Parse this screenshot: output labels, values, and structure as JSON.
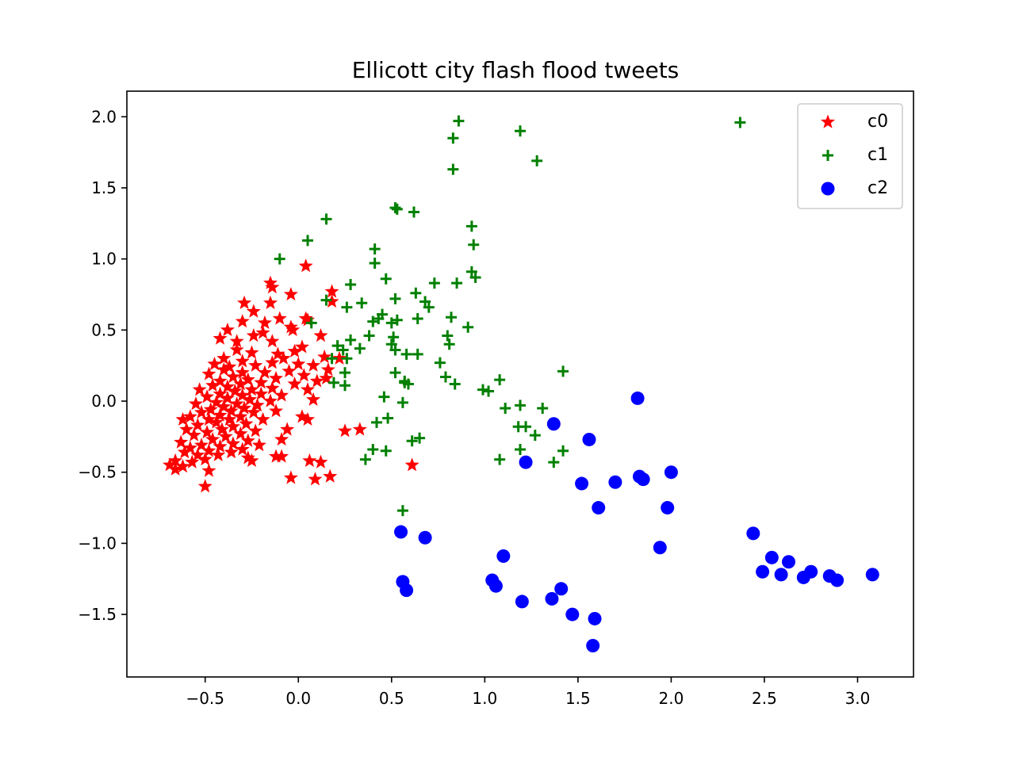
{
  "chart_data": {
    "type": "scatter",
    "title": "Ellicott city flash flood tweets",
    "xlabel": "",
    "ylabel": "",
    "xlim": [
      -0.92,
      3.3
    ],
    "ylim": [
      -1.94,
      2.18
    ],
    "xticks": [
      -0.5,
      0.0,
      0.5,
      1.0,
      1.5,
      2.0,
      2.5,
      3.0
    ],
    "xtick_labels": [
      "−0.5",
      "0.0",
      "0.5",
      "1.0",
      "1.5",
      "2.0",
      "2.5",
      "3.0"
    ],
    "yticks": [
      -1.5,
      -1.0,
      -0.5,
      0.0,
      0.5,
      1.0,
      1.5,
      2.0
    ],
    "ytick_labels": [
      "−1.5",
      "−1.0",
      "−0.5",
      "0.0",
      "0.5",
      "1.0",
      "1.5",
      "2.0"
    ],
    "grid": false,
    "legend_position": "top-right",
    "series": [
      {
        "name": "c0",
        "marker": "star",
        "color": "#ff0000",
        "points": [
          [
            0.04,
            0.95
          ],
          [
            -0.15,
            0.83
          ],
          [
            -0.14,
            0.8
          ],
          [
            0.18,
            0.77
          ],
          [
            -0.04,
            0.75
          ],
          [
            0.18,
            0.7
          ],
          [
            -0.15,
            0.69
          ],
          [
            -0.29,
            0.69
          ],
          [
            -0.24,
            0.63
          ],
          [
            -0.1,
            0.58
          ],
          [
            0.04,
            0.58
          ],
          [
            0.05,
            0.57
          ],
          [
            -0.3,
            0.56
          ],
          [
            -0.04,
            0.52
          ],
          [
            -0.38,
            0.5
          ],
          [
            -0.03,
            0.5
          ],
          [
            -0.19,
            0.48
          ],
          [
            -0.24,
            0.46
          ],
          [
            0.12,
            0.46
          ],
          [
            -0.42,
            0.44
          ],
          [
            -0.33,
            0.42
          ],
          [
            -0.14,
            0.42
          ],
          [
            0.02,
            0.38
          ],
          [
            -0.33,
            0.36
          ],
          [
            -0.25,
            0.34
          ],
          [
            -0.11,
            0.33
          ],
          [
            0.14,
            0.31
          ],
          [
            -0.4,
            0.3
          ],
          [
            0.22,
            0.3
          ],
          [
            -0.08,
            0.3
          ],
          [
            -0.3,
            0.28
          ],
          [
            -0.14,
            0.27
          ],
          [
            0.0,
            0.26
          ],
          [
            -0.45,
            0.26
          ],
          [
            -0.23,
            0.25
          ],
          [
            0.08,
            0.25
          ],
          [
            -0.37,
            0.24
          ],
          [
            -0.4,
            0.22
          ],
          [
            0.16,
            0.22
          ],
          [
            -0.05,
            0.21
          ],
          [
            -0.3,
            0.2
          ],
          [
            -0.18,
            0.2
          ],
          [
            -0.48,
            0.19
          ],
          [
            0.03,
            0.18
          ],
          [
            -0.35,
            0.17
          ],
          [
            -0.12,
            0.16
          ],
          [
            -0.27,
            0.15
          ],
          [
            -0.42,
            0.14
          ],
          [
            0.1,
            0.14
          ],
          [
            -0.2,
            0.13
          ],
          [
            -0.31,
            0.12
          ],
          [
            -0.02,
            0.12
          ],
          [
            -0.46,
            0.11
          ],
          [
            -0.38,
            0.1
          ],
          [
            -0.14,
            0.09
          ],
          [
            -0.25,
            0.08
          ],
          [
            0.05,
            0.08
          ],
          [
            -0.53,
            0.08
          ],
          [
            -0.34,
            0.07
          ],
          [
            -0.42,
            0.05
          ],
          [
            -0.2,
            0.05
          ],
          [
            -0.3,
            0.04
          ],
          [
            -0.09,
            0.04
          ],
          [
            -0.49,
            0.03
          ],
          [
            -0.38,
            0.02
          ],
          [
            -0.26,
            0.01
          ],
          [
            -0.15,
            0.0
          ],
          [
            -0.44,
            -0.01
          ],
          [
            -0.33,
            -0.02
          ],
          [
            -0.55,
            -0.02
          ],
          [
            -0.22,
            -0.03
          ],
          [
            -0.4,
            -0.04
          ],
          [
            -0.29,
            -0.05
          ],
          [
            -0.47,
            -0.06
          ],
          [
            -0.36,
            -0.07
          ],
          [
            -0.12,
            -0.07
          ],
          [
            -0.52,
            -0.08
          ],
          [
            -0.24,
            -0.08
          ],
          [
            -0.42,
            -0.1
          ],
          [
            -0.31,
            -0.11
          ],
          [
            -0.58,
            -0.11
          ],
          [
            -0.48,
            -0.13
          ],
          [
            -0.37,
            -0.13
          ],
          [
            -0.19,
            -0.13
          ],
          [
            -0.62,
            -0.13
          ],
          [
            -0.44,
            -0.15
          ],
          [
            -0.28,
            -0.16
          ],
          [
            -0.54,
            -0.17
          ],
          [
            -0.35,
            -0.18
          ],
          [
            -0.41,
            -0.2
          ],
          [
            -0.6,
            -0.2
          ],
          [
            -0.23,
            -0.21
          ],
          [
            -0.49,
            -0.22
          ],
          [
            -0.31,
            -0.23
          ],
          [
            -0.56,
            -0.24
          ],
          [
            -0.39,
            -0.25
          ],
          [
            -0.09,
            -0.27
          ],
          [
            -0.46,
            -0.27
          ],
          [
            -0.27,
            -0.28
          ],
          [
            -0.63,
            -0.29
          ],
          [
            -0.35,
            -0.3
          ],
          [
            -0.52,
            -0.31
          ],
          [
            -0.21,
            -0.31
          ],
          [
            -0.42,
            -0.32
          ],
          [
            -0.58,
            -0.33
          ],
          [
            -0.3,
            -0.34
          ],
          [
            -0.48,
            -0.35
          ],
          [
            -0.36,
            -0.36
          ],
          [
            -0.61,
            -0.36
          ],
          [
            -0.54,
            -0.38
          ],
          [
            -0.43,
            -0.38
          ],
          [
            -0.27,
            -0.4
          ],
          [
            -0.5,
            -0.41
          ],
          [
            -0.66,
            -0.42
          ],
          [
            -0.57,
            -0.43
          ],
          [
            -0.69,
            -0.45
          ],
          [
            -0.62,
            -0.46
          ],
          [
            -0.48,
            -0.49
          ],
          [
            -0.66,
            -0.48
          ],
          [
            -0.5,
            -0.6
          ],
          [
            -0.25,
            -0.42
          ],
          [
            -0.12,
            -0.39
          ],
          [
            -0.09,
            -0.39
          ],
          [
            0.06,
            -0.42
          ],
          [
            0.12,
            -0.43
          ],
          [
            -0.04,
            -0.54
          ],
          [
            0.09,
            -0.55
          ],
          [
            0.17,
            -0.53
          ],
          [
            0.61,
            -0.45
          ],
          [
            0.25,
            -0.21
          ],
          [
            0.33,
            -0.2
          ],
          [
            0.05,
            -0.13
          ],
          [
            0.02,
            -0.11
          ],
          [
            -0.06,
            -0.2
          ],
          [
            0.15,
            0.16
          ],
          [
            0.08,
            0.01
          ],
          [
            -0.02,
            0.35
          ],
          [
            -0.18,
            0.55
          ]
        ]
      },
      {
        "name": "c1",
        "marker": "plus",
        "color": "#008000",
        "points": [
          [
            0.86,
            1.97
          ],
          [
            0.83,
            1.85
          ],
          [
            1.19,
            1.9
          ],
          [
            2.37,
            1.96
          ],
          [
            1.28,
            1.69
          ],
          [
            0.83,
            1.63
          ],
          [
            0.52,
            1.36
          ],
          [
            0.53,
            1.35
          ],
          [
            0.62,
            1.33
          ],
          [
            0.15,
            1.28
          ],
          [
            0.93,
            1.23
          ],
          [
            0.05,
            1.13
          ],
          [
            0.94,
            1.1
          ],
          [
            0.41,
            1.07
          ],
          [
            -0.1,
            1.0
          ],
          [
            0.41,
            0.97
          ],
          [
            0.93,
            0.91
          ],
          [
            0.95,
            0.87
          ],
          [
            0.47,
            0.86
          ],
          [
            0.28,
            0.82
          ],
          [
            0.73,
            0.83
          ],
          [
            0.85,
            0.83
          ],
          [
            0.52,
            0.72
          ],
          [
            0.63,
            0.76
          ],
          [
            0.15,
            0.71
          ],
          [
            0.68,
            0.7
          ],
          [
            0.7,
            0.66
          ],
          [
            0.26,
            0.66
          ],
          [
            0.34,
            0.69
          ],
          [
            0.45,
            0.61
          ],
          [
            0.4,
            0.56
          ],
          [
            0.43,
            0.58
          ],
          [
            0.5,
            0.55
          ],
          [
            0.82,
            0.59
          ],
          [
            0.07,
            0.55
          ],
          [
            0.64,
            0.58
          ],
          [
            0.91,
            0.52
          ],
          [
            0.53,
            0.57
          ],
          [
            0.38,
            0.46
          ],
          [
            0.51,
            0.45
          ],
          [
            0.81,
            0.4
          ],
          [
            0.8,
            0.46
          ],
          [
            0.28,
            0.43
          ],
          [
            0.21,
            0.39
          ],
          [
            0.24,
            0.36
          ],
          [
            0.52,
            0.36
          ],
          [
            0.5,
            0.4
          ],
          [
            0.33,
            0.37
          ],
          [
            0.58,
            0.33
          ],
          [
            0.64,
            0.33
          ],
          [
            0.18,
            0.3
          ],
          [
            0.26,
            0.3
          ],
          [
            0.76,
            0.27
          ],
          [
            0.52,
            0.2
          ],
          [
            0.25,
            0.2
          ],
          [
            0.57,
            0.13
          ],
          [
            0.57,
            0.14
          ],
          [
            0.79,
            0.17
          ],
          [
            0.19,
            0.13
          ],
          [
            0.84,
            0.12
          ],
          [
            0.25,
            0.11
          ],
          [
            1.08,
            0.15
          ],
          [
            1.42,
            0.21
          ],
          [
            0.99,
            0.08
          ],
          [
            1.02,
            0.07
          ],
          [
            0.46,
            0.03
          ],
          [
            0.56,
            -0.01
          ],
          [
            1.11,
            -0.05
          ],
          [
            1.19,
            -0.03
          ],
          [
            1.31,
            -0.05
          ],
          [
            0.42,
            -0.15
          ],
          [
            1.18,
            -0.18
          ],
          [
            1.22,
            -0.18
          ],
          [
            0.65,
            -0.26
          ],
          [
            0.61,
            -0.28
          ],
          [
            1.27,
            -0.24
          ],
          [
            0.4,
            -0.34
          ],
          [
            0.47,
            -0.35
          ],
          [
            1.19,
            -0.34
          ],
          [
            1.42,
            -0.35
          ],
          [
            0.36,
            -0.41
          ],
          [
            1.08,
            -0.41
          ],
          [
            1.37,
            -0.43
          ],
          [
            0.56,
            -0.77
          ],
          [
            0.59,
            0.12
          ],
          [
            0.48,
            -0.12
          ]
        ]
      },
      {
        "name": "c2",
        "marker": "circle",
        "color": "#0000ff",
        "points": [
          [
            1.82,
            0.02
          ],
          [
            1.37,
            -0.16
          ],
          [
            1.56,
            -0.27
          ],
          [
            1.22,
            -0.43
          ],
          [
            1.52,
            -0.58
          ],
          [
            1.7,
            -0.57
          ],
          [
            1.83,
            -0.53
          ],
          [
            1.85,
            -0.55
          ],
          [
            2.0,
            -0.5
          ],
          [
            1.61,
            -0.75
          ],
          [
            1.98,
            -0.75
          ],
          [
            0.55,
            -0.92
          ],
          [
            0.68,
            -0.96
          ],
          [
            2.44,
            -0.93
          ],
          [
            1.94,
            -1.03
          ],
          [
            1.1,
            -1.09
          ],
          [
            2.54,
            -1.1
          ],
          [
            2.63,
            -1.13
          ],
          [
            2.49,
            -1.2
          ],
          [
            2.59,
            -1.22
          ],
          [
            2.75,
            -1.2
          ],
          [
            2.71,
            -1.24
          ],
          [
            2.85,
            -1.23
          ],
          [
            2.89,
            -1.26
          ],
          [
            3.08,
            -1.22
          ],
          [
            0.56,
            -1.27
          ],
          [
            0.58,
            -1.33
          ],
          [
            1.04,
            -1.26
          ],
          [
            1.06,
            -1.3
          ],
          [
            1.41,
            -1.32
          ],
          [
            1.36,
            -1.39
          ],
          [
            1.2,
            -1.41
          ],
          [
            1.47,
            -1.5
          ],
          [
            1.59,
            -1.53
          ],
          [
            1.58,
            -1.72
          ]
        ]
      }
    ]
  }
}
